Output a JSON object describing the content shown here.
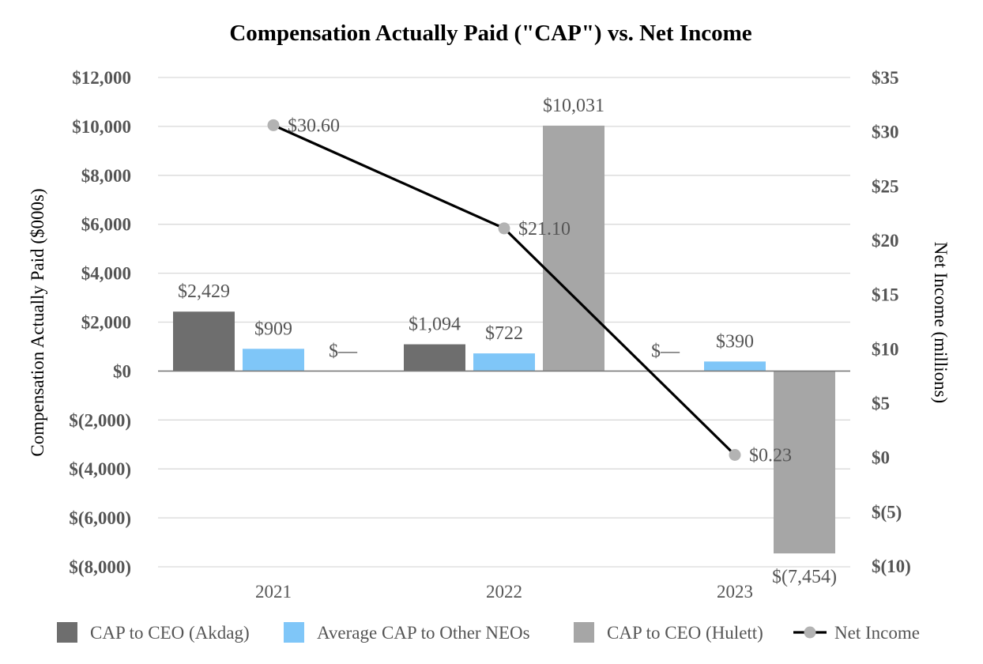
{
  "chart_data": {
    "type": "bar",
    "title": "Compensation Actually Paid  (\"CAP\") vs. Net Income",
    "categories": [
      "2021",
      "2022",
      "2023"
    ],
    "ylabel": "Compensation Actually Paid ($000s)",
    "y2label": "Net Income (millions)",
    "ylim": [
      -8000,
      12000
    ],
    "y2lim": [
      -10,
      35
    ],
    "y_ticks": [
      12000,
      10000,
      8000,
      6000,
      4000,
      2000,
      0,
      -2000,
      -4000,
      -6000,
      -8000
    ],
    "y_tick_labels": [
      "$12,000",
      "$10,000",
      "$8,000",
      "$6,000",
      "$4,000",
      "$2,000",
      "$0",
      "$(2,000)",
      "$(4,000)",
      "$(6,000)",
      "$(8,000)"
    ],
    "y2_ticks": [
      35,
      30,
      25,
      20,
      15,
      10,
      5,
      0,
      -5,
      -10
    ],
    "y2_tick_labels": [
      "$35",
      "$30",
      "$25",
      "$20",
      "$15",
      "$10",
      "$5",
      "$0",
      "$(5)",
      "$(10)"
    ],
    "grid": true,
    "legend_position": "bottom",
    "series": [
      {
        "name": "CAP to CEO (Akdag)",
        "color": "#6e6e6e",
        "values": [
          2429,
          1094,
          0
        ],
        "labels": [
          "$2,429",
          "$1,094",
          "$—"
        ]
      },
      {
        "name": "Average CAP to Other NEOs",
        "color": "#7fc6f8",
        "values": [
          909,
          722,
          390
        ],
        "labels": [
          "$909",
          "$722",
          "$390"
        ]
      },
      {
        "name": "CAP  to CEO (Hulett)",
        "color": "#a6a6a6",
        "values": [
          0,
          10031,
          -7454
        ],
        "labels": [
          "$—",
          "$10,031",
          "$(7,454)"
        ]
      }
    ],
    "line_series": {
      "name": "Net Income",
      "axis": "right",
      "line_color": "#000000",
      "marker_color": "#b3b3b3",
      "values": [
        30.6,
        21.1,
        0.23
      ],
      "labels": [
        "$30.60",
        "$21.10",
        "$0.23"
      ]
    }
  }
}
